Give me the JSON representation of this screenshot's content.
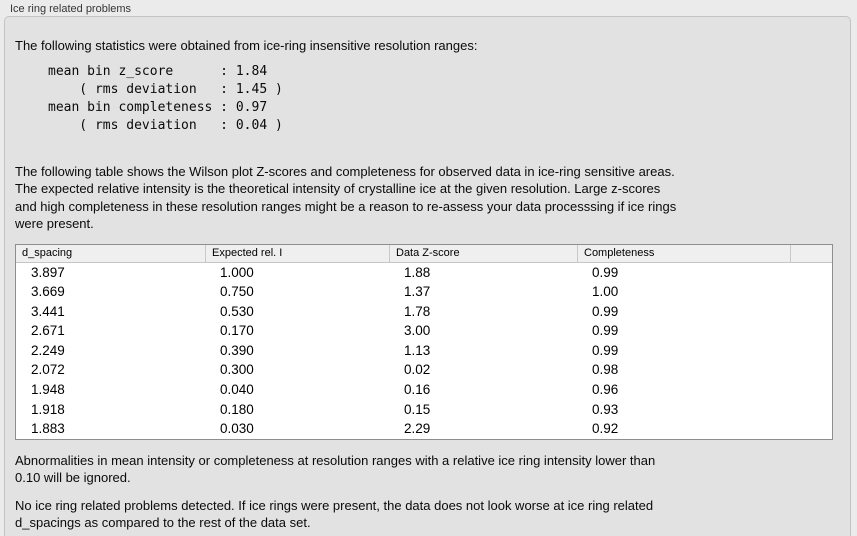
{
  "panel": {
    "title": "Ice ring related problems"
  },
  "colors": {
    "page_bg": "#ebebeb",
    "panel_bg": "#e2e2e2",
    "table_bg": "#ffffff",
    "table_border": "#8e8e8e"
  },
  "stats": {
    "intro": "The following statistics were obtained from ice-ring insensitive resolution ranges:",
    "lines": [
      "mean bin z_score      : 1.84",
      "    ( rms deviation   : 1.45 )",
      "mean bin completeness : 0.97",
      "    ( rms deviation   : 0.04 )"
    ]
  },
  "description": {
    "lines": [
      "The following table shows the Wilson plot Z-scores and completeness for observed data in ice-ring sensitive areas.",
      "The expected relative intensity is the theoretical intensity of crystalline ice at the given resolution. Large z-scores",
      "and high completeness in these resolution ranges might be a reason to re-assess your data processsing if ice rings",
      "were present."
    ]
  },
  "table": {
    "columns": [
      "d_spacing",
      "Expected rel. I",
      "Data Z-score",
      "Completeness"
    ],
    "rows": [
      [
        "3.897",
        "1.000",
        "1.88",
        "0.99"
      ],
      [
        "3.669",
        "0.750",
        "1.37",
        "1.00"
      ],
      [
        "3.441",
        "0.530",
        "1.78",
        "0.99"
      ],
      [
        "2.671",
        "0.170",
        "3.00",
        "0.99"
      ],
      [
        "2.249",
        "0.390",
        "1.13",
        "0.99"
      ],
      [
        "2.072",
        "0.300",
        "0.02",
        "0.98"
      ],
      [
        "1.948",
        "0.040",
        "0.16",
        "0.96"
      ],
      [
        "1.918",
        "0.180",
        "0.15",
        "0.93"
      ],
      [
        "1.883",
        "0.030",
        "2.29",
        "0.92"
      ]
    ]
  },
  "notes": {
    "ignore_lines": [
      "Abnormalities in mean intensity or completeness at resolution ranges with a relative ice ring intensity lower than",
      "0.10 will be ignored."
    ],
    "conclusion_lines": [
      "No ice ring related problems detected. If ice rings were present, the data does not look worse at ice ring related",
      "d_spacings as compared to the rest of the data set."
    ]
  }
}
